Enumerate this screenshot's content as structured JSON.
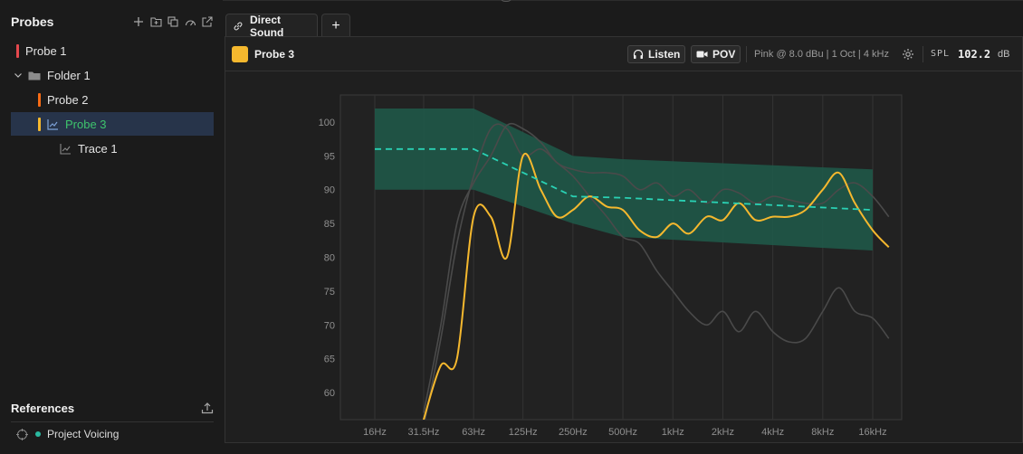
{
  "sidebar": {
    "title": "Probes",
    "tools": [
      "plus-icon",
      "folder-plus-icon",
      "duplicate-icon",
      "gauge-icon",
      "external-link-icon"
    ],
    "items": [
      {
        "label": "Probe 1",
        "color": "#e5484d"
      },
      {
        "label": "Folder 1"
      },
      {
        "label": "Probe 2",
        "color": "#f76b15"
      },
      {
        "label": "Probe 3",
        "color": "#f5b82e",
        "selected_color": "#3ec46d"
      },
      {
        "label": "Trace 1"
      }
    ],
    "references": {
      "title": "References",
      "items": [
        {
          "label": "Project Voicing",
          "color": "#2ab9a0"
        }
      ]
    }
  },
  "tabs": [
    {
      "label": "Direct Sound"
    },
    {
      "label": "+"
    }
  ],
  "toolbar": {
    "probe_name": "Probe 3",
    "probe_color": "#f5b82e",
    "listen_label": "Listen",
    "pov_label": "POV",
    "signal_info": "Pink @ 8.0 dBu | 1 Oct | 4 kHz",
    "spl_label": "SPL",
    "spl_value": "102.2",
    "spl_unit": "dB"
  },
  "chart_data": {
    "type": "line",
    "x_ticks": [
      "16Hz",
      "31.5Hz",
      "63Hz",
      "125Hz",
      "250Hz",
      "500Hz",
      "1kHz",
      "2kHz",
      "4kHz",
      "8kHz",
      "16kHz"
    ],
    "y_ticks": [
      100,
      95,
      90,
      85,
      80,
      75,
      70,
      65,
      60
    ],
    "ylim": [
      56,
      104
    ],
    "grid": true,
    "target_band": {
      "x": [
        "16Hz",
        "63Hz",
        "250Hz",
        "500Hz",
        "16kHz"
      ],
      "upper": [
        102,
        102,
        95,
        94.5,
        93
      ],
      "lower": [
        90,
        90,
        85,
        83,
        81
      ],
      "color": "#1f5a4a"
    },
    "target_curve": {
      "x": [
        "16Hz",
        "63Hz",
        "250Hz",
        "500Hz",
        "16kHz"
      ],
      "values": [
        96,
        96,
        89,
        88.8,
        87
      ],
      "color": "#2ad1b4"
    },
    "series": [
      {
        "color": "#f5b82e",
        "x": [
          "31.5Hz",
          "40Hz",
          "50Hz",
          "63Hz",
          "80Hz",
          "100Hz",
          "125Hz",
          "160Hz",
          "200Hz",
          "250Hz",
          "315Hz",
          "400Hz",
          "500Hz",
          "630Hz",
          "800Hz",
          "1kHz",
          "1.25kHz",
          "1.6kHz",
          "2kHz",
          "2.5kHz",
          "3.15kHz",
          "4kHz",
          "5kHz",
          "6.3kHz",
          "8kHz",
          "10kHz",
          "12.5kHz",
          "16kHz",
          "20kHz"
        ],
        "values": [
          56,
          64,
          65,
          86,
          86,
          80,
          95,
          90,
          86,
          87,
          89,
          87.5,
          87,
          84,
          83,
          85,
          83.5,
          86,
          85.5,
          88,
          85.5,
          86,
          86,
          87,
          90,
          92.5,
          88,
          84,
          81.5
        ]
      },
      {
        "color": "#4a4a4a",
        "x": [
          "31.5Hz",
          "40Hz",
          "50Hz",
          "63Hz",
          "80Hz",
          "100Hz",
          "125Hz",
          "160Hz",
          "200Hz",
          "250Hz",
          "315Hz",
          "400Hz",
          "500Hz",
          "630Hz",
          "800Hz",
          "1kHz",
          "1.25kHz",
          "1.6kHz",
          "2kHz",
          "2.5kHz",
          "3.15kHz",
          "4kHz",
          "5kHz",
          "6.3kHz",
          "8kHz",
          "10kHz",
          "12.5kHz",
          "16kHz",
          "20kHz"
        ],
        "values": [
          55,
          68,
          82,
          92,
          99,
          99,
          95,
          96,
          94,
          92,
          89,
          86,
          83,
          82,
          78,
          75,
          72,
          70,
          72,
          69,
          72,
          69,
          67.5,
          68,
          72,
          75.5,
          72,
          71,
          68
        ]
      },
      {
        "color": "#4a4a4a",
        "x": [
          "31.5Hz",
          "40Hz",
          "50Hz",
          "63Hz",
          "80Hz",
          "100Hz",
          "125Hz",
          "160Hz",
          "200Hz",
          "250Hz",
          "315Hz",
          "400Hz",
          "500Hz",
          "630Hz",
          "800Hz",
          "1kHz",
          "1.25kHz",
          "1.6kHz",
          "2kHz",
          "2.5kHz",
          "3.15kHz",
          "4kHz",
          "5kHz",
          "6.3kHz",
          "8kHz",
          "10kHz",
          "12.5kHz",
          "16kHz",
          "20kHz"
        ],
        "values": [
          57,
          70,
          85,
          91,
          95,
          99.5,
          99,
          97,
          94,
          93,
          92.5,
          92.5,
          92,
          90,
          91,
          89,
          90,
          88,
          90,
          89.5,
          88,
          89,
          88.5,
          88,
          88,
          90,
          91,
          89,
          86
        ]
      }
    ]
  }
}
